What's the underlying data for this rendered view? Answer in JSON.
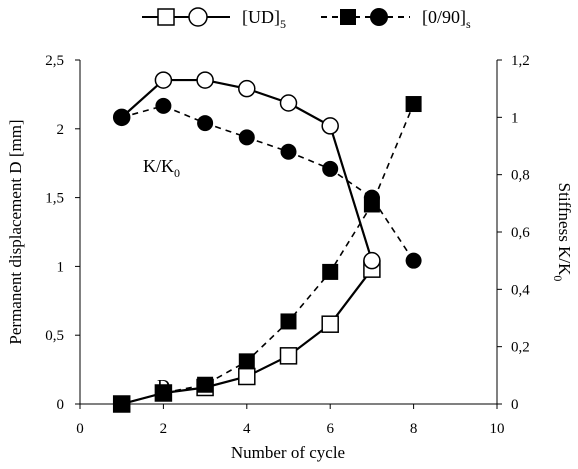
{
  "chart_data": {
    "type": "line",
    "x": [
      1,
      2,
      3,
      4,
      5,
      6,
      7,
      8
    ],
    "xlabel": "Number of cycle",
    "ylabel": "Permanent displacement D [mm]",
    "y2label": "Stiffness K/K",
    "y2label_sub": "0",
    "xlim": [
      0,
      10
    ],
    "ylim": [
      0,
      2.5
    ],
    "y2lim": [
      0,
      1.2
    ],
    "xticks": [
      "0",
      "2",
      "4",
      "6",
      "8",
      "10"
    ],
    "yticks": [
      "0",
      "0,5",
      "1",
      "1,5",
      "2",
      "2,5"
    ],
    "y2ticks": [
      "0",
      "0,2",
      "0,4",
      "0,6",
      "0,8",
      "1",
      "1,2"
    ],
    "grid": false,
    "legend_position": "top",
    "legend": [
      {
        "label": "[UD]",
        "sub": "5",
        "line": "solid",
        "markers": [
          "open-square",
          "open-circle"
        ]
      },
      {
        "label": "[0/90]",
        "sub": "s",
        "line": "dashed",
        "markers": [
          "filled-square",
          "filled-circle"
        ]
      }
    ],
    "annotations": [
      {
        "text": "K/K",
        "sub": "0"
      },
      {
        "text": "D",
        "sub": ""
      }
    ],
    "series": [
      {
        "laminate": "[UD]5",
        "quantity": "D",
        "axis": "left",
        "line": "solid",
        "marker": "open-square",
        "x": [
          1,
          2,
          3,
          4,
          5,
          6,
          7
        ],
        "values": [
          0.0,
          0.08,
          0.12,
          0.2,
          0.35,
          0.58,
          0.98
        ]
      },
      {
        "laminate": "[UD]5",
        "quantity": "K/K0",
        "axis": "right",
        "line": "solid",
        "marker": "open-circle",
        "x": [
          1,
          2,
          3,
          4,
          5,
          6,
          7
        ],
        "values": [
          1.0,
          1.13,
          1.13,
          1.1,
          1.05,
          0.97,
          0.5
        ]
      },
      {
        "laminate": "[0/90]s",
        "quantity": "D",
        "axis": "left",
        "line": "dashed",
        "marker": "filled-square",
        "x": [
          1,
          2,
          3,
          4,
          5,
          6,
          7,
          8
        ],
        "values": [
          0.0,
          0.08,
          0.14,
          0.31,
          0.6,
          0.96,
          1.45,
          2.18
        ]
      },
      {
        "laminate": "[0/90]s",
        "quantity": "K/K0",
        "axis": "right",
        "line": "dashed",
        "marker": "filled-circle",
        "x": [
          1,
          2,
          3,
          4,
          5,
          6,
          7,
          8
        ],
        "values": [
          1.0,
          1.04,
          0.98,
          0.93,
          0.88,
          0.82,
          0.72,
          0.5
        ]
      }
    ]
  }
}
